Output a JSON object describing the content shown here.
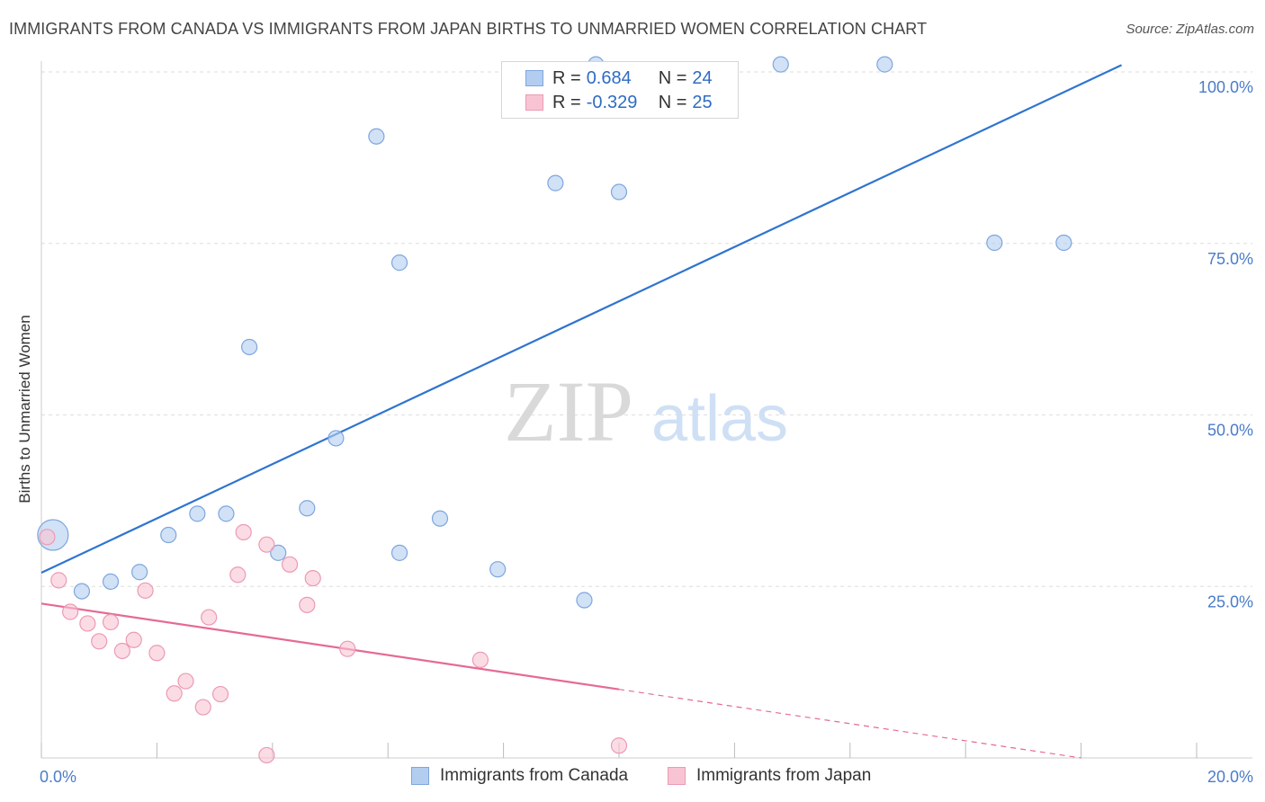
{
  "title": "IMMIGRANTS FROM CANADA VS IMMIGRANTS FROM JAPAN BIRTHS TO UNMARRIED WOMEN CORRELATION CHART",
  "source": "Source: ZipAtlas.com",
  "watermark": {
    "zip": "ZIP",
    "atlas": "atlas"
  },
  "legend": [
    {
      "r_label": "R =",
      "r_value": "0.684",
      "n_label": "N =",
      "n_value": "24",
      "color": "#b3cdf0",
      "border": "#7ea6de"
    },
    {
      "r_label": "R =",
      "r_value": "-0.329",
      "n_label": "N =",
      "n_value": "25",
      "color": "#f8c4d3",
      "border": "#ec9ab3"
    }
  ],
  "bottom_legend": [
    {
      "label": "Immigrants from Canada",
      "color": "#b3cdf0",
      "border": "#7ea6de"
    },
    {
      "label": "Immigrants from Japan",
      "color": "#f8c4d3",
      "border": "#ec9ab3"
    }
  ],
  "chart_data": {
    "type": "scatter",
    "title": "IMMIGRANTS FROM CANADA VS IMMIGRANTS FROM JAPAN BIRTHS TO UNMARRIED WOMEN CORRELATION CHART",
    "xlabel": "",
    "ylabel": "Births to Unmarried Women",
    "xlim": [
      0,
      20
    ],
    "ylim": [
      0,
      100
    ],
    "x_tick_labels": [
      "0.0%",
      "20.0%"
    ],
    "y_tick_labels": [
      "25.0%",
      "50.0%",
      "75.0%",
      "100.0%"
    ],
    "y_tick_values": [
      25,
      50,
      75,
      100
    ],
    "series": [
      {
        "name": "Immigrants from Canada",
        "color": "#b3cdf0",
        "stroke": "#7ea6de",
        "trend_color": "#2f74cf",
        "points": [
          {
            "x": 0.2,
            "y": 32.5,
            "big": true
          },
          {
            "x": 0.7,
            "y": 24.3
          },
          {
            "x": 1.2,
            "y": 25.7
          },
          {
            "x": 1.7,
            "y": 27.1
          },
          {
            "x": 2.2,
            "y": 32.5
          },
          {
            "x": 2.7,
            "y": 35.6
          },
          {
            "x": 3.2,
            "y": 35.6
          },
          {
            "x": 3.6,
            "y": 59.9
          },
          {
            "x": 4.1,
            "y": 29.9
          },
          {
            "x": 4.6,
            "y": 36.4
          },
          {
            "x": 5.1,
            "y": 46.6
          },
          {
            "x": 5.8,
            "y": 90.6
          },
          {
            "x": 6.2,
            "y": 72.2
          },
          {
            "x": 6.2,
            "y": 29.9
          },
          {
            "x": 6.9,
            "y": 34.9
          },
          {
            "x": 7.9,
            "y": 27.5
          },
          {
            "x": 8.9,
            "y": 83.8
          },
          {
            "x": 9.4,
            "y": 23.0
          },
          {
            "x": 9.6,
            "y": 101.1
          },
          {
            "x": 10.0,
            "y": 82.5
          },
          {
            "x": 12.8,
            "y": 101.1
          },
          {
            "x": 14.6,
            "y": 101.1
          },
          {
            "x": 16.5,
            "y": 75.1
          },
          {
            "x": 17.7,
            "y": 75.1
          }
        ],
        "trend": {
          "x0": 0,
          "y0": 27.0,
          "x1": 18.7,
          "y1": 101.0,
          "dashed_to": null
        }
      },
      {
        "name": "Immigrants from Japan",
        "color": "#f8c4d3",
        "stroke": "#ec9ab3",
        "trend_color": "#e56a95",
        "points": [
          {
            "x": 0.1,
            "y": 32.2
          },
          {
            "x": 0.3,
            "y": 25.9
          },
          {
            "x": 0.5,
            "y": 21.3
          },
          {
            "x": 0.8,
            "y": 19.6
          },
          {
            "x": 1.0,
            "y": 17.0
          },
          {
            "x": 1.2,
            "y": 19.8
          },
          {
            "x": 1.4,
            "y": 15.6
          },
          {
            "x": 1.6,
            "y": 17.2
          },
          {
            "x": 1.8,
            "y": 24.4
          },
          {
            "x": 2.0,
            "y": 15.3
          },
          {
            "x": 2.3,
            "y": 9.4
          },
          {
            "x": 2.5,
            "y": 11.2
          },
          {
            "x": 2.8,
            "y": 7.4
          },
          {
            "x": 2.9,
            "y": 20.5
          },
          {
            "x": 3.1,
            "y": 9.3
          },
          {
            "x": 3.4,
            "y": 26.7
          },
          {
            "x": 3.5,
            "y": 32.9
          },
          {
            "x": 3.9,
            "y": 0.4
          },
          {
            "x": 3.9,
            "y": 31.1
          },
          {
            "x": 4.3,
            "y": 28.2
          },
          {
            "x": 4.6,
            "y": 22.3
          },
          {
            "x": 4.7,
            "y": 26.2
          },
          {
            "x": 5.3,
            "y": 15.9
          },
          {
            "x": 7.6,
            "y": 14.3
          },
          {
            "x": 10.0,
            "y": 1.8
          }
        ],
        "trend": {
          "x0": 0,
          "y0": 22.5,
          "x1": 10.0,
          "y1": 10.0,
          "dashed_to": {
            "x": 18.0,
            "y": 0
          }
        }
      }
    ]
  }
}
